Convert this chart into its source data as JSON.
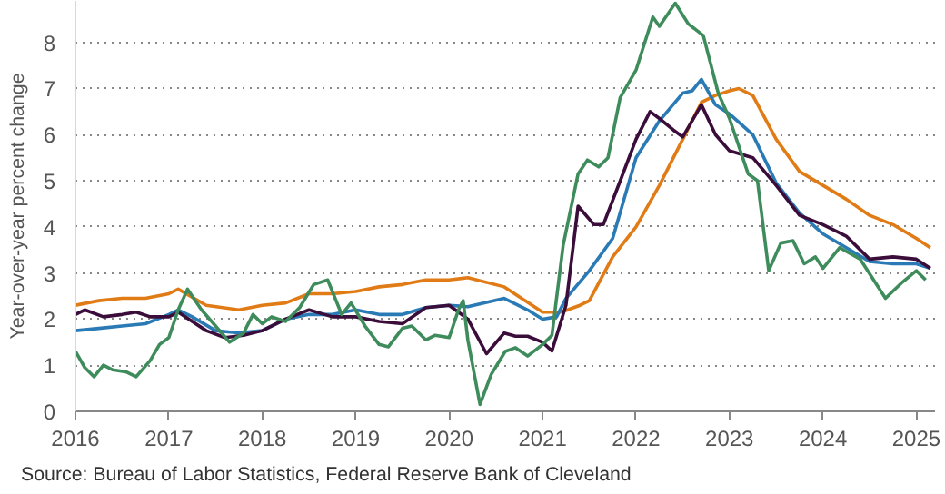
{
  "chart_data": {
    "type": "line",
    "ylabel": "Year-over-year percent change",
    "annotations": [
      "Source: Bureau of Labor Statistics, Federal Reserve Bank of Cleveland"
    ],
    "xlim": [
      2016,
      2025.2
    ],
    "ylim": [
      0,
      8.9
    ],
    "xticks": [
      2016,
      2017,
      2018,
      2019,
      2020,
      2021,
      2022,
      2023,
      2024,
      2025
    ],
    "yticks": [
      0,
      1,
      2,
      3,
      4,
      5,
      6,
      7,
      8
    ],
    "grid": "y",
    "line_style": "solid",
    "marker": "none",
    "series": [
      {
        "color": "#e07b16",
        "x": [
          2016.0,
          2016.25,
          2016.5,
          2016.75,
          2017.0,
          2017.1,
          2017.4,
          2017.75,
          2018.0,
          2018.25,
          2018.5,
          2018.75,
          2019.0,
          2019.25,
          2019.5,
          2019.75,
          2020.0,
          2020.2,
          2020.59,
          2021.0,
          2021.2,
          2021.4,
          2021.5,
          2021.75,
          2022.0,
          2022.25,
          2022.5,
          2022.7,
          2022.85,
          2023.0,
          2023.1,
          2023.25,
          2023.5,
          2023.75,
          2024.0,
          2024.25,
          2024.5,
          2024.75,
          2025.0,
          2025.15
        ],
        "values": [
          2.3,
          2.4,
          2.45,
          2.45,
          2.55,
          2.65,
          2.3,
          2.2,
          2.3,
          2.35,
          2.55,
          2.55,
          2.6,
          2.7,
          2.75,
          2.85,
          2.85,
          2.9,
          2.7,
          2.15,
          2.15,
          2.3,
          2.4,
          3.35,
          4.0,
          4.9,
          5.9,
          6.7,
          6.85,
          6.95,
          7.0,
          6.85,
          5.9,
          5.2,
          4.9,
          4.6,
          4.25,
          4.05,
          3.75,
          3.55
        ]
      },
      {
        "color": "#2a7ab5",
        "x": [
          2016.0,
          2016.25,
          2016.5,
          2016.75,
          2017.0,
          2017.1,
          2017.25,
          2017.5,
          2017.75,
          2018.0,
          2018.25,
          2018.5,
          2018.75,
          2019.0,
          2019.25,
          2019.5,
          2019.75,
          2020.0,
          2020.2,
          2020.59,
          2020.84,
          2021.0,
          2021.15,
          2021.25,
          2021.5,
          2021.75,
          2022.0,
          2022.25,
          2022.5,
          2022.6,
          2022.7,
          2022.85,
          2023.0,
          2023.25,
          2023.5,
          2023.75,
          2024.0,
          2024.25,
          2024.5,
          2024.75,
          2025.0,
          2025.15
        ],
        "values": [
          1.75,
          1.8,
          1.85,
          1.9,
          2.1,
          2.2,
          2.05,
          1.75,
          1.7,
          1.75,
          2.0,
          2.1,
          2.1,
          2.2,
          2.1,
          2.1,
          2.25,
          2.3,
          2.27,
          2.45,
          2.2,
          2.0,
          2.05,
          2.45,
          3.05,
          3.75,
          5.5,
          6.3,
          6.9,
          6.95,
          7.2,
          6.65,
          6.45,
          6.0,
          4.95,
          4.3,
          3.85,
          3.55,
          3.25,
          3.2,
          3.2,
          3.1
        ]
      },
      {
        "color": "#3b0d3b",
        "x": [
          2016.0,
          2016.1,
          2016.3,
          2016.5,
          2016.65,
          2016.8,
          2017.0,
          2017.1,
          2017.4,
          2017.6,
          2017.8,
          2018.0,
          2018.25,
          2018.5,
          2018.75,
          2019.0,
          2019.25,
          2019.5,
          2019.75,
          2020.0,
          2020.2,
          2020.4,
          2020.59,
          2020.71,
          2020.84,
          2021.0,
          2021.1,
          2021.25,
          2021.38,
          2021.55,
          2021.65,
          2021.85,
          2022.0,
          2022.15,
          2022.25,
          2022.4,
          2022.5,
          2022.7,
          2022.85,
          2023.0,
          2023.25,
          2023.5,
          2023.75,
          2024.0,
          2024.25,
          2024.5,
          2024.75,
          2025.0,
          2025.15
        ],
        "values": [
          2.1,
          2.2,
          2.05,
          2.1,
          2.15,
          2.05,
          2.05,
          2.15,
          1.75,
          1.6,
          1.65,
          1.75,
          2.0,
          2.2,
          2.05,
          2.05,
          1.95,
          1.9,
          2.25,
          2.3,
          2.0,
          1.25,
          1.7,
          1.63,
          1.63,
          1.5,
          1.31,
          2.3,
          4.45,
          4.05,
          4.05,
          5.1,
          5.9,
          6.5,
          6.35,
          6.1,
          5.95,
          6.65,
          6.0,
          5.65,
          5.5,
          4.9,
          4.25,
          4.05,
          3.8,
          3.3,
          3.35,
          3.3,
          3.1
        ]
      },
      {
        "color": "#3e8c5c",
        "x": [
          2016.0,
          2016.1,
          2016.2,
          2016.3,
          2016.4,
          2016.55,
          2016.65,
          2016.8,
          2016.9,
          2017.0,
          2017.1,
          2017.2,
          2017.35,
          2017.5,
          2017.65,
          2017.8,
          2017.9,
          2018.0,
          2018.1,
          2018.25,
          2018.4,
          2018.55,
          2018.7,
          2018.85,
          2018.95,
          2019.1,
          2019.25,
          2019.35,
          2019.5,
          2019.6,
          2019.75,
          2019.85,
          2020.0,
          2020.1,
          2020.15,
          2020.2,
          2020.33,
          2020.45,
          2020.6,
          2020.71,
          2020.84,
          2021.0,
          2021.1,
          2021.22,
          2021.38,
          2021.48,
          2021.6,
          2021.7,
          2021.83,
          2022.0,
          2022.18,
          2022.25,
          2022.42,
          2022.56,
          2022.72,
          2022.88,
          2023.0,
          2023.2,
          2023.3,
          2023.42,
          2023.55,
          2023.68,
          2023.8,
          2023.92,
          2024.0,
          2024.18,
          2024.4,
          2024.67,
          2024.85,
          2025.0,
          2025.1
        ],
        "values": [
          1.3,
          0.95,
          0.75,
          1.0,
          0.9,
          0.85,
          0.75,
          1.1,
          1.45,
          1.6,
          2.2,
          2.65,
          2.2,
          1.85,
          1.5,
          1.7,
          2.1,
          1.9,
          2.05,
          1.95,
          2.25,
          2.75,
          2.85,
          2.1,
          2.35,
          1.85,
          1.45,
          1.4,
          1.8,
          1.85,
          1.55,
          1.65,
          1.6,
          2.2,
          2.4,
          1.55,
          0.15,
          0.8,
          1.3,
          1.38,
          1.2,
          1.45,
          1.65,
          3.6,
          5.15,
          5.45,
          5.3,
          5.5,
          6.8,
          7.4,
          8.55,
          8.35,
          8.85,
          8.4,
          8.15,
          6.9,
          6.35,
          5.15,
          5.0,
          3.05,
          3.65,
          3.7,
          3.2,
          3.35,
          3.1,
          3.55,
          3.3,
          2.45,
          2.8,
          3.05,
          2.85
        ]
      }
    ]
  }
}
